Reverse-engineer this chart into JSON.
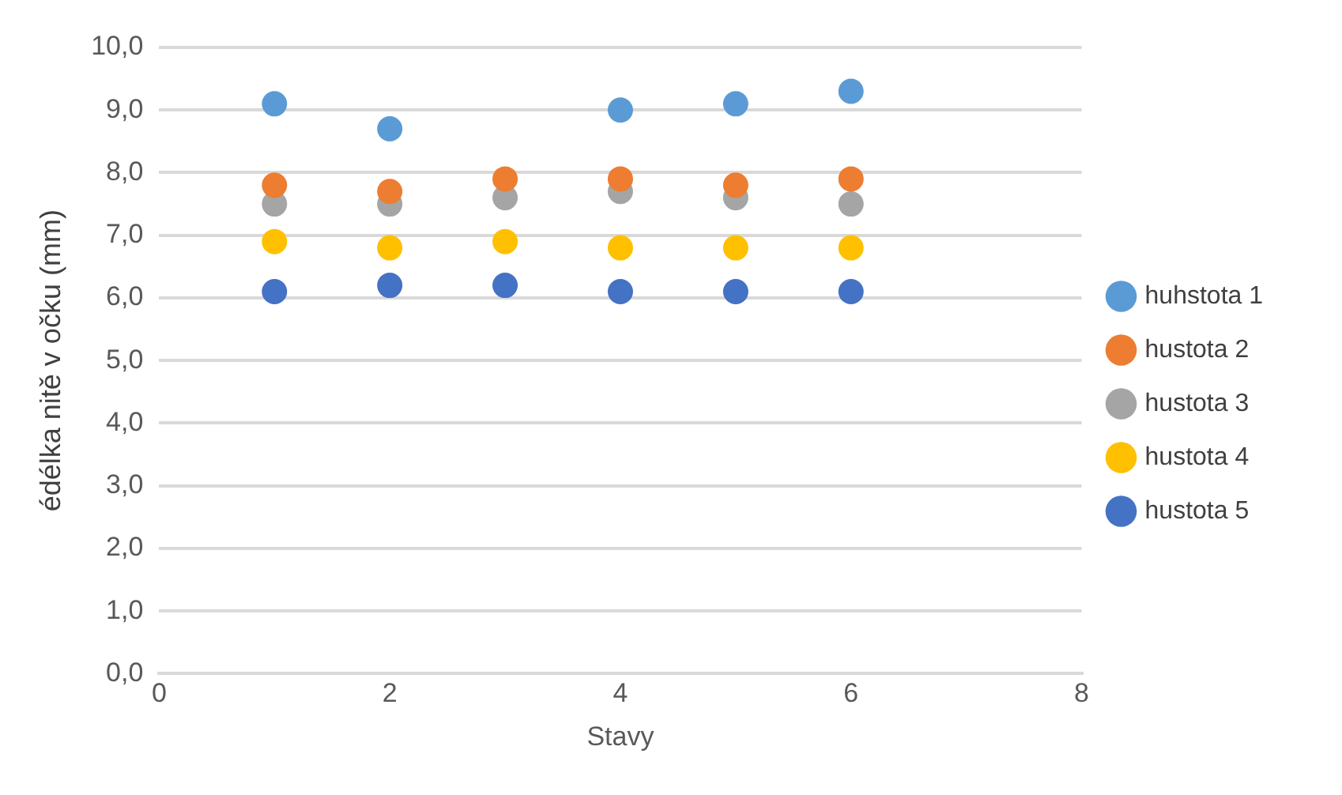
{
  "chart_data": {
    "type": "scatter",
    "xlabel": "Stavy",
    "ylabel": "édélka nitě v očku (mm)",
    "x": [
      1,
      2,
      3,
      4,
      5,
      6
    ],
    "series": [
      {
        "name": "huhstota 1",
        "color": "#5b9bd5",
        "values": [
          9.1,
          8.7,
          null,
          9.0,
          9.1,
          9.3
        ]
      },
      {
        "name": "hustota 2",
        "color": "#ed7d31",
        "values": [
          7.8,
          7.7,
          7.9,
          7.9,
          7.8,
          7.9
        ]
      },
      {
        "name": "hustota 3",
        "color": "#a5a5a5",
        "values": [
          7.5,
          7.5,
          7.6,
          7.7,
          7.6,
          7.5
        ]
      },
      {
        "name": "hustota 4",
        "color": "#ffc000",
        "values": [
          6.9,
          6.8,
          6.9,
          6.8,
          6.8,
          6.8
        ]
      },
      {
        "name": "hustota 5",
        "color": "#4472c4",
        "values": [
          6.1,
          6.2,
          6.2,
          6.1,
          6.1,
          6.1
        ]
      }
    ],
    "xlim": [
      0,
      8
    ],
    "xticks": [
      0,
      2,
      4,
      6,
      8
    ],
    "ylim": [
      0,
      10
    ],
    "yticks": [
      {
        "value": 0,
        "label": "0,0"
      },
      {
        "value": 1,
        "label": "1,0"
      },
      {
        "value": 2,
        "label": "2,0"
      },
      {
        "value": 3,
        "label": "3,0"
      },
      {
        "value": 4,
        "label": "4,0"
      },
      {
        "value": 5,
        "label": "5,0"
      },
      {
        "value": 6,
        "label": "6,0"
      },
      {
        "value": 7,
        "label": "7,0"
      },
      {
        "value": 8,
        "label": "8,0"
      },
      {
        "value": 9,
        "label": "9,0"
      },
      {
        "value": 10,
        "label": "10,0"
      }
    ],
    "grid": "y",
    "legend": "right",
    "marker": "circle"
  }
}
